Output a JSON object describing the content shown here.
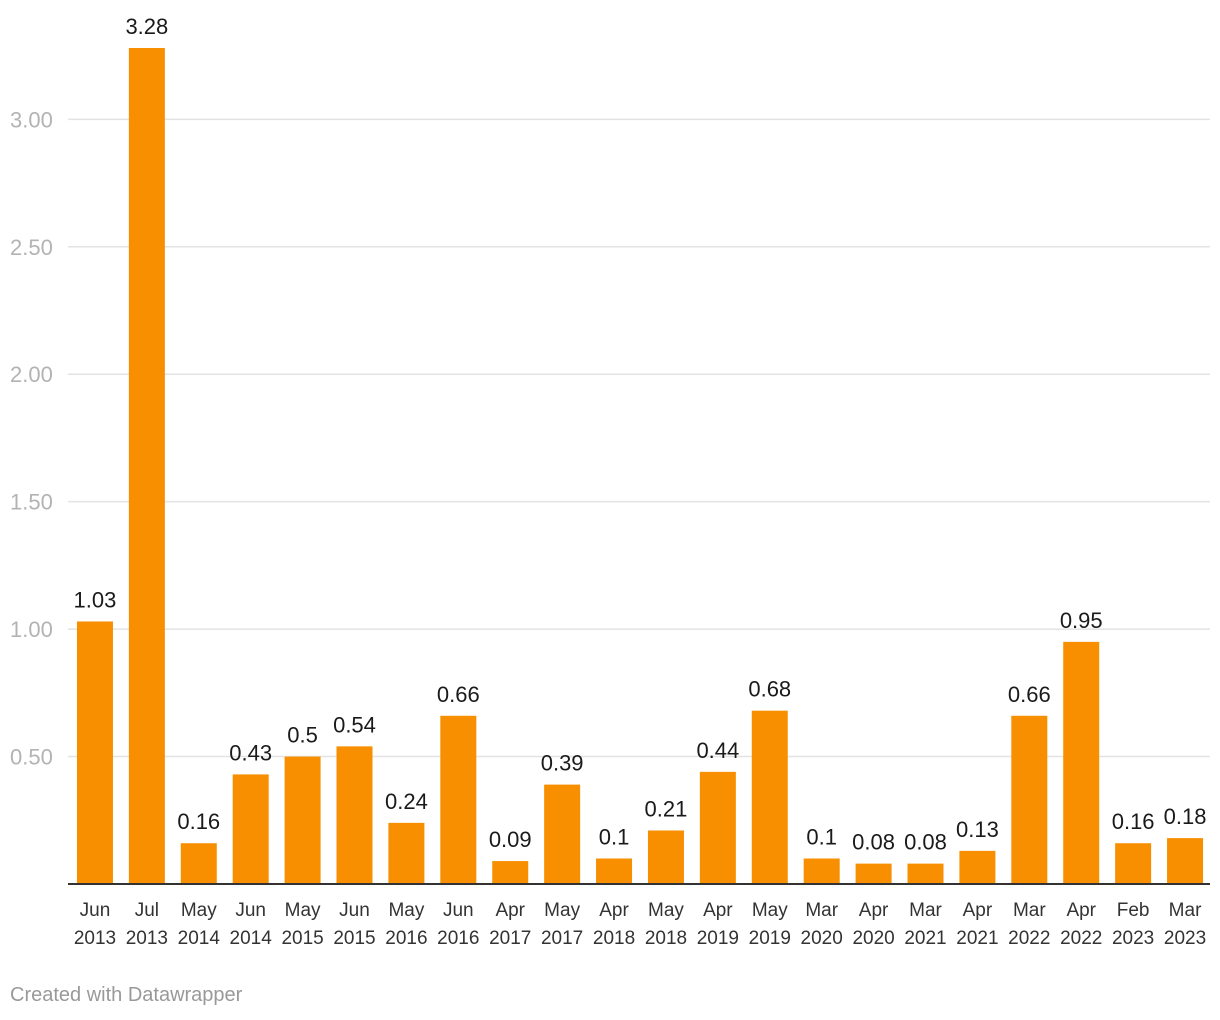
{
  "chart_data": {
    "type": "bar",
    "categories": [
      "Jun 2013",
      "Jul 2013",
      "May 2014",
      "Jun 2014",
      "May 2015",
      "Jun 2015",
      "May 2016",
      "Jun 2016",
      "Apr 2017",
      "May 2017",
      "Apr 2018",
      "May 2018",
      "Apr 2019",
      "May 2019",
      "Mar 2020",
      "Apr 2020",
      "Mar 2021",
      "Apr 2021",
      "Mar 2022",
      "Apr 2022",
      "Feb 2023",
      "Mar 2023"
    ],
    "values": [
      1.03,
      3.28,
      0.16,
      0.43,
      0.5,
      0.54,
      0.24,
      0.66,
      0.09,
      0.39,
      0.1,
      0.21,
      0.44,
      0.68,
      0.1,
      0.08,
      0.08,
      0.13,
      0.66,
      0.95,
      0.16,
      0.18
    ],
    "value_labels": [
      "1.03",
      "3.28",
      "0.16",
      "0.43",
      "0.5",
      "0.54",
      "0.24",
      "0.66",
      "0.09",
      "0.39",
      "0.1",
      "0.21",
      "0.44",
      "0.68",
      "0.1",
      "0.08",
      "0.08",
      "0.13",
      "0.66",
      "0.95",
      "0.16",
      "0.18"
    ],
    "yticks": [
      0.5,
      1.0,
      1.5,
      2.0,
      2.5,
      3.0
    ],
    "ytick_labels": [
      "0.50",
      "1.00",
      "1.50",
      "2.00",
      "2.50",
      "3.00"
    ],
    "ylim": [
      0,
      3.28
    ],
    "grid": true,
    "bar_color": "#f78f00",
    "title": "",
    "xlabel": "",
    "ylabel": ""
  },
  "footer": {
    "credit": "Created with Datawrapper"
  }
}
